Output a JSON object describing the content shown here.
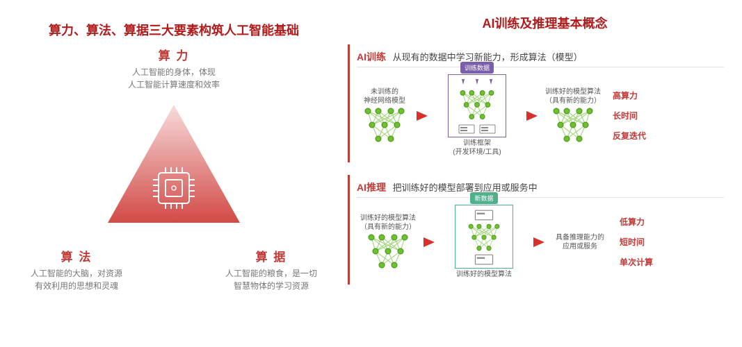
{
  "colors": {
    "heading": "#b01b1b",
    "triangle_fill_top": "#f7dcdc",
    "triangle_fill_bottom": "#d24a46",
    "chip_stroke": "#ffffff",
    "node_green": "#6fbf2f",
    "node_green_stroke": "#3f8f12",
    "arrow_red": "#d9302c",
    "section_border_gray": "#cfcfcf",
    "train_accent": "#7b5fa8",
    "infer_accent": "#4fb08a",
    "body_gray": "#555555"
  },
  "left": {
    "heading": "算力、算法、算据三大要素构筑人工智能基础",
    "heading_fontsize": 18,
    "apex": {
      "title": "算 力",
      "title_color": "#c23a36",
      "desc1": "人工智能的身体，体现",
      "desc2": "人工智能计算速度和效率"
    },
    "left_base": {
      "title": "算 法",
      "title_color": "#c23a36",
      "desc1": "人工智能的大脑，对资源",
      "desc2": "有效利用的思想和灵魂"
    },
    "right_base": {
      "title": "算 据",
      "title_color": "#c23a36",
      "desc1": "人工智能的粮食，是一切",
      "desc2": "智慧物体的学习资源"
    }
  },
  "right": {
    "heading": "AI训练及推理基本概念",
    "heading_fontsize": 18,
    "train": {
      "title": "AI训练",
      "title_color": "#c23a36",
      "subtitle": "从现有的数据中学习新能力，形成算法（模型）",
      "accent": "#7b5fa8",
      "input_label1": "未训练的",
      "input_label2": "神经网络模型",
      "data_pill": "训练数据",
      "framework_label1": "训练框架",
      "framework_label2": "(开发环境/工具)",
      "output_label1": "训练好的模型算法",
      "output_label2": "（具有新的能力）",
      "reqs": [
        "高算力",
        "长时间",
        "反复迭代"
      ],
      "req_color": "#c23a36"
    },
    "infer": {
      "title": "AI推理",
      "title_color": "#c23a36",
      "subtitle": "把训练好的模型部署到应用或服务中",
      "accent": "#4fb08a",
      "input_label1": "训练好的模型算法",
      "input_label2": "（具有新的能力）",
      "data_pill": "新数据",
      "bottom_label": "训练好的模型算法",
      "output_label1": "具备推理能力的",
      "output_label2": "应用或服务",
      "reqs": [
        "低算力",
        "短时间",
        "单次计算"
      ],
      "req_color": "#c23a36"
    }
  }
}
